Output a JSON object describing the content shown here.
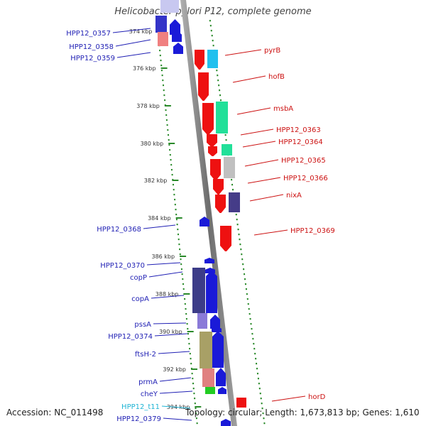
{
  "title": "Helicobacter pylori P12, complete genome",
  "footer": {
    "accession": "Accession: NC_011498",
    "summary": "Topology: circular; Length: 1,673,813 bp; Genes: 1,610"
  },
  "colors": {
    "forward_label": "#1f1fb4",
    "reverse_label": "#cc1111",
    "trna_label": "#1fb4d4",
    "backbone": "#808080",
    "tick": "#2a8a2a"
  },
  "ticks": [
    {
      "label": "374 kbp"
    },
    {
      "label": "376 kbp"
    },
    {
      "label": "378 kbp"
    },
    {
      "label": "380 kbp"
    },
    {
      "label": "382 kbp"
    },
    {
      "label": "384 kbp"
    },
    {
      "label": "386 kbp"
    },
    {
      "label": "388 kbp"
    },
    {
      "label": "390 kbp"
    },
    {
      "label": "392 kbp"
    },
    {
      "label": "394 kbp"
    }
  ],
  "left_genes": [
    {
      "name": "HPP12_0357"
    },
    {
      "name": "HPP12_0358"
    },
    {
      "name": "HPP12_0359"
    },
    {
      "name": "HPP12_0368"
    },
    {
      "name": "HPP12_0370"
    },
    {
      "name": "copP"
    },
    {
      "name": "copA"
    },
    {
      "name": "pssA"
    },
    {
      "name": "HPP12_0374"
    },
    {
      "name": "ftsH-2"
    },
    {
      "name": "prmA"
    },
    {
      "name": "cheY"
    },
    {
      "name": "HPP12_t11"
    },
    {
      "name": "HPP12_0379"
    }
  ],
  "right_genes": [
    {
      "name": "pyrB"
    },
    {
      "name": "hofB"
    },
    {
      "name": "msbA"
    },
    {
      "name": "HPP12_0363"
    },
    {
      "name": "HPP12_0364"
    },
    {
      "name": "HPP12_0365"
    },
    {
      "name": "HPP12_0366"
    },
    {
      "name": "nixA"
    },
    {
      "name": "HPP12_0369"
    },
    {
      "name": "horD"
    }
  ]
}
